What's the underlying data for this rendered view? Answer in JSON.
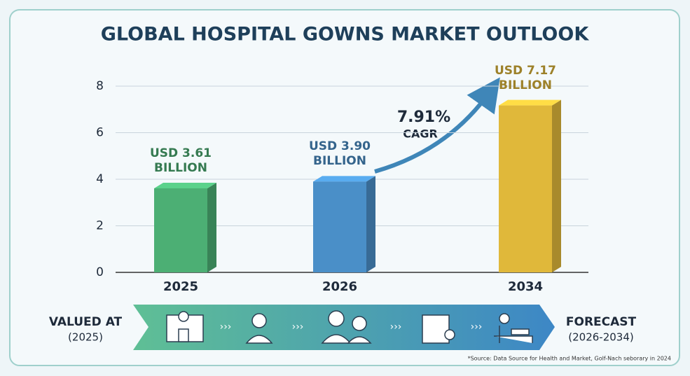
{
  "chart_data": {
    "type": "bar",
    "title": "GLOBAL HOSPITAL GOWNS MARKET OUTLOOK",
    "categories": [
      "2025",
      "2026",
      "2034"
    ],
    "values": [
      3.61,
      3.9,
      7.17
    ],
    "value_labels": [
      "USD 3.61 BILLION",
      "USD 3.90 BILLION",
      "USD 7.17 BILLION"
    ],
    "colors": [
      "#4caf74",
      "#4a8fc8",
      "#e0b83a"
    ],
    "ylim": [
      0,
      8
    ],
    "yticks": [
      0,
      2,
      4,
      6,
      8
    ],
    "grid": true,
    "annotation": {
      "value": "7.91%",
      "label": "CAGR"
    }
  },
  "banner": {
    "start": "VALUED AT",
    "start_sub": "(2025)",
    "end": "FORECAST",
    "end_sub": "(2026-2034)"
  },
  "source": "*Source: Data Source for Health and Market, Golf-Nach seborary in 2024"
}
